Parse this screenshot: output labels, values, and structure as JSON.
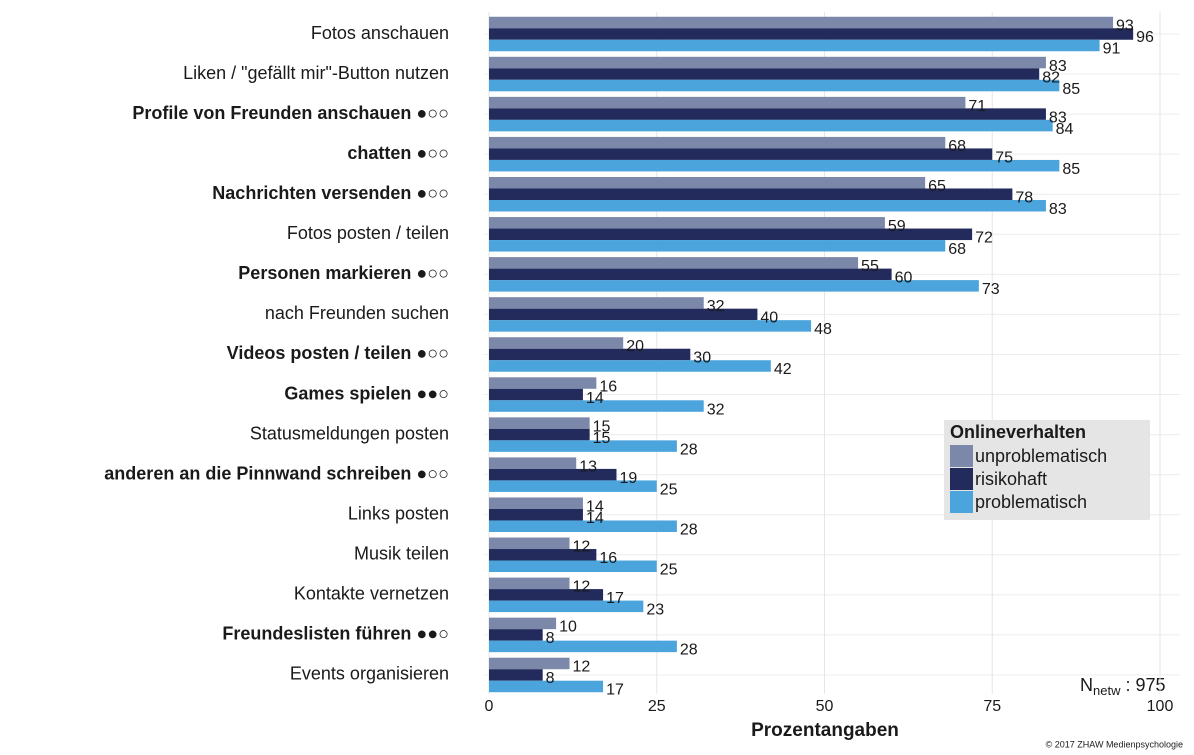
{
  "chart_data": {
    "type": "barh",
    "categories": [
      "Fotos anschauen",
      "Liken / \"gefällt mir\"-Button nutzen",
      "Profile von Freunden anschauen ●○○",
      "chatten ●○○",
      "Nachrichten versenden ●○○",
      "Fotos posten / teilen",
      "Personen markieren ●○○",
      "nach Freunden suchen",
      "Videos posten / teilen ●○○",
      "Games spielen ●●○",
      "Statusmeldungen posten",
      "anderen an die Pinnwand schreiben ●○○",
      "Links posten",
      "Musik teilen",
      "Kontakte vernetzen",
      "Freundeslisten führen ●●○",
      "Events organisieren"
    ],
    "category_bold": [
      false,
      false,
      true,
      true,
      true,
      false,
      true,
      false,
      true,
      true,
      false,
      true,
      false,
      false,
      false,
      true,
      false
    ],
    "series": [
      {
        "name": "unproblematisch",
        "color": "#7b88aa",
        "values": [
          93,
          83,
          71,
          68,
          65,
          59,
          55,
          32,
          20,
          16,
          15,
          13,
          14,
          12,
          12,
          10,
          12
        ]
      },
      {
        "name": "risikohaft",
        "color": "#232a5c",
        "values": [
          96,
          82,
          83,
          75,
          78,
          72,
          60,
          40,
          30,
          14,
          15,
          19,
          14,
          16,
          17,
          8,
          8
        ]
      },
      {
        "name": "problematisch",
        "color": "#4ba4dc",
        "values": [
          91,
          85,
          84,
          85,
          83,
          68,
          73,
          48,
          42,
          32,
          28,
          25,
          28,
          25,
          23,
          28,
          17
        ]
      }
    ],
    "xlim": [
      0,
      100
    ],
    "xticks": [
      0,
      25,
      50,
      75,
      100
    ],
    "xlabel": "Prozentangaben",
    "legend_title": "Onlineverhalten",
    "grid": true,
    "n_label": "N",
    "n_subscript": "netw",
    "n_text": " : 975",
    "credit": "© 2017 ZHAW Medienpsychologie"
  }
}
